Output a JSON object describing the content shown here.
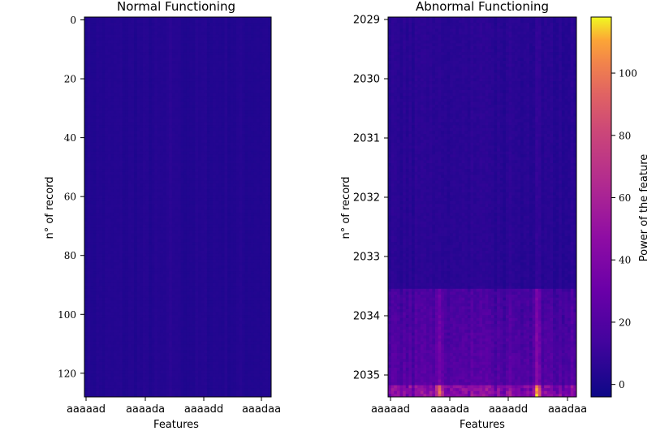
{
  "colors": {
    "colormap": "plasma",
    "low": "#0d0887",
    "mid": "#cc4778",
    "high": "#f0f921"
  },
  "chart_data": [
    {
      "type": "heatmap",
      "title": "Normal Functioning",
      "xlabel": "Features",
      "ylabel": "n° of record",
      "x_ticks": [
        "aaaaad",
        "aaaada",
        "aaaadd",
        "aaadaa"
      ],
      "y_ticks": [
        0,
        20,
        40,
        60,
        80,
        100,
        120
      ],
      "ylim": [
        0,
        129
      ],
      "columns": 64,
      "rows": 130,
      "value_range": [
        0,
        6
      ],
      "description_values": "uniformly low power (about 0–6) with faint vertical column variation"
    },
    {
      "type": "heatmap",
      "title": "Abnormal Functioning",
      "xlabel": "Features",
      "ylabel": "n° of record",
      "x_ticks": [
        "aaaaad",
        "aaaada",
        "aaaadd",
        "aaadaa"
      ],
      "y_ticks": [
        "2029",
        "2030",
        "2031",
        "2032",
        "2033",
        "2034",
        "2035"
      ],
      "columns": 64,
      "rows": 130,
      "segments": [
        {
          "records": "2029 – 2033.5",
          "power_range": [
            0,
            8
          ]
        },
        {
          "records": "2033.5 – 2035.2",
          "power_range": [
            5,
            35
          ],
          "bright_columns": [
            "aaaada",
            "aaaadd"
          ]
        },
        {
          "records": "2035.2 – 2035.4",
          "power_range": [
            15,
            118
          ],
          "peaks_at": [
            "aaaada",
            "aaaadd"
          ]
        }
      ]
    },
    {
      "type": "colorbar",
      "label": "Power of the feature",
      "ticks": [
        0,
        20,
        40,
        60,
        80,
        100
      ],
      "range": [
        -4,
        118
      ]
    }
  ]
}
